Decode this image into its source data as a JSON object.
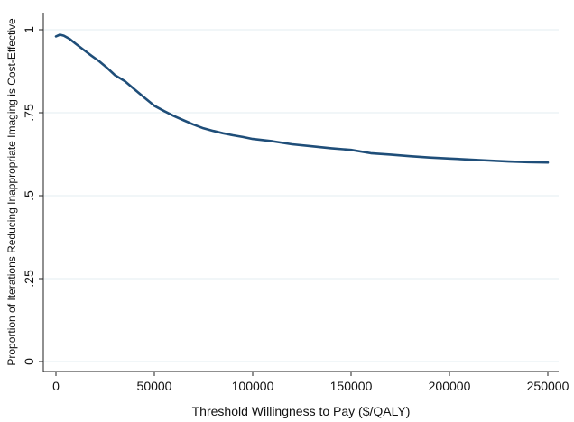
{
  "chart_data": {
    "type": "line",
    "title": "",
    "xlabel": "Threshold Willingness to Pay ($/QALY)",
    "ylabel": "Proportion of Iterations Reducing Inappropriate Imaging is Cost-Effective",
    "xlim": [
      0,
      250000
    ],
    "ylim": [
      0,
      1
    ],
    "xticks": [
      0,
      50000,
      100000,
      150000,
      200000,
      250000
    ],
    "xtick_labels": [
      "0",
      "50000",
      "100000",
      "150000",
      "200000",
      "250000"
    ],
    "yticks": [
      0,
      0.25,
      0.5,
      0.75,
      1
    ],
    "ytick_labels": [
      "0",
      ".25",
      ".5",
      ".75",
      "1"
    ],
    "grid": true,
    "line_color": "#1f4e79",
    "series": [
      {
        "x": [
          0,
          2000,
          4000,
          7000,
          10000,
          14000,
          18000,
          22000,
          26000,
          30000,
          35000,
          40000,
          45000,
          50000,
          55000,
          60000,
          65000,
          70000,
          75000,
          80000,
          85000,
          90000,
          95000,
          100000,
          110000,
          120000,
          130000,
          140000,
          150000,
          160000,
          170000,
          180000,
          190000,
          200000,
          210000,
          220000,
          230000,
          240000,
          250000
        ],
        "y": [
          0.98,
          0.985,
          0.982,
          0.972,
          0.958,
          0.94,
          0.922,
          0.905,
          0.885,
          0.863,
          0.845,
          0.82,
          0.795,
          0.771,
          0.755,
          0.74,
          0.727,
          0.714,
          0.703,
          0.695,
          0.688,
          0.682,
          0.677,
          0.671,
          0.664,
          0.655,
          0.649,
          0.643,
          0.638,
          0.628,
          0.624,
          0.619,
          0.615,
          0.612,
          0.609,
          0.606,
          0.603,
          0.601,
          0.6
        ]
      }
    ]
  }
}
